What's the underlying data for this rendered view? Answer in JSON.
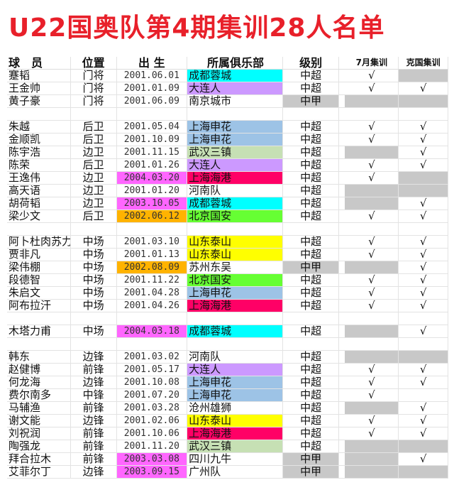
{
  "title": "U22国奥队第4期集训28人名单",
  "headers": {
    "name": "球　员",
    "position": "位置",
    "birth": "出 生",
    "club": "所属俱乐部",
    "level": "级别",
    "july": "7月集训",
    "croatia": "克国集训"
  },
  "colors": {
    "成都蓉城": "#00ffff",
    "大连人": "#cc99ff",
    "上海申花": "#9dc3e6",
    "武汉三镇": "#c6e0b4",
    "上海海港": "#ff0066",
    "北京国安": "#66ff33",
    "山东泰山": "#ffff00",
    "magenta": "#ff66ff",
    "orange": "#ffb300",
    "gray": "#c8c8c8"
  },
  "rows": [
    {
      "name": "蹇韬",
      "pos": "门将",
      "birth": "2001.06.01",
      "club": "成都蓉城",
      "level": "中超",
      "july": "√",
      "ke": "",
      "ke_gray": true
    },
    {
      "name": "王金帅",
      "pos": "门将",
      "birth": "2001.01.09",
      "club": "大连人",
      "level": "中超",
      "july": "√",
      "ke": "√"
    },
    {
      "name": "黄子豪",
      "pos": "门将",
      "birth": "2001.06.09",
      "club": "南京城市",
      "level": "中甲",
      "level_gray": true,
      "july": "",
      "july_gray": true,
      "ke": "",
      "ke_gray": true
    },
    {
      "gap": true
    },
    {
      "name": "朱越",
      "pos": "后卫",
      "birth": "2001.05.04",
      "club": "上海申花",
      "level": "中超",
      "july": "√",
      "ke": "√"
    },
    {
      "name": "金顺凯",
      "pos": "后卫",
      "birth": "2001.10.09",
      "club": "上海申花",
      "level": "中超",
      "july": "√",
      "ke": "√"
    },
    {
      "name": "陈宇浩",
      "pos": "边卫",
      "birth": "2001.11.15",
      "club": "武汉三镇",
      "level": "中超",
      "july": "",
      "july_gray": true,
      "ke": "√"
    },
    {
      "name": "陈荣",
      "pos": "后卫",
      "birth": "2001.01.26",
      "club": "大连人",
      "level": "中超",
      "july": "√",
      "ke": "√"
    },
    {
      "name": "王逸伟",
      "pos": "边卫",
      "birth": "2004.03.20",
      "birth_color": "magenta",
      "club": "上海海港",
      "level": "中超",
      "july": "√",
      "ke": "",
      "ke_gray": true
    },
    {
      "name": "高天语",
      "pos": "边卫",
      "birth": "2001.01.20",
      "club": "河南队",
      "level": "中超",
      "july": "",
      "july_gray": true,
      "ke": "",
      "ke_gray": true
    },
    {
      "name": "胡荷韬",
      "pos": "边卫",
      "birth": "2003.10.05",
      "birth_color": "magenta",
      "club": "成都蓉城",
      "level": "中超",
      "july": "",
      "july_gray": true,
      "ke": "√"
    },
    {
      "name": "梁少文",
      "pos": "后卫",
      "birth": "2002.06.12",
      "birth_color": "orange",
      "club": "北京国安",
      "level": "中超",
      "july": "√",
      "ke": "√"
    },
    {
      "gap": true
    },
    {
      "name": "阿卜杜肉苏力",
      "pos": "中场",
      "birth": "2001.03.10",
      "club": "山东泰山",
      "level": "中超",
      "july": "√",
      "ke": "√"
    },
    {
      "name": "贾非凡",
      "pos": "中场",
      "birth": "2001.01.13",
      "club": "山东泰山",
      "level": "中超",
      "july": "√",
      "ke": "√"
    },
    {
      "name": "梁伟棚",
      "pos": "中场",
      "birth": "2002.08.09",
      "birth_color": "orange",
      "club": "苏州东吴",
      "level": "中甲",
      "level_gray": true,
      "july": "",
      "july_gray": true,
      "ke": "√"
    },
    {
      "name": "段德智",
      "pos": "中场",
      "birth": "2001.11.22",
      "club": "北京国安",
      "level": "中超",
      "july": "√",
      "ke": "√"
    },
    {
      "name": "朱启文",
      "pos": "中场",
      "birth": "2001.04.28",
      "club": "上海申花",
      "level": "中超",
      "july": "√",
      "ke": "√"
    },
    {
      "name": "阿布拉汗",
      "pos": "中场",
      "birth": "2001.04.26",
      "club": "上海海港",
      "level": "中超",
      "july": "√",
      "ke": "√"
    },
    {
      "gap": true
    },
    {
      "name": "木塔力甫",
      "pos": "中场",
      "birth": "2004.03.18",
      "birth_color": "magenta",
      "club": "成都蓉城",
      "level": "中超",
      "july": "",
      "july_gray": true,
      "ke": "√"
    },
    {
      "gap": true
    },
    {
      "name": "韩东",
      "pos": "边锋",
      "birth": "2001.03.02",
      "club": "河南队",
      "level": "中超",
      "july": "",
      "july_gray": true,
      "ke": "",
      "ke_gray": true
    },
    {
      "name": "赵健博",
      "pos": "前锋",
      "birth": "2001.05.17",
      "club": "大连人",
      "level": "中超",
      "july": "√",
      "ke": "√"
    },
    {
      "name": "何龙海",
      "pos": "边锋",
      "birth": "2001.10.08",
      "club": "上海申花",
      "level": "中超",
      "july": "√",
      "ke": "√"
    },
    {
      "name": "费尔南多",
      "pos": "中锋",
      "birth": "2001.07.20",
      "club": "上海申花",
      "level": "中超",
      "july": "√",
      "ke": ""
    },
    {
      "name": "马辅渔",
      "pos": "前锋",
      "birth": "2001.03.28",
      "club": "沧州雄狮",
      "level": "中超",
      "july": "",
      "july_gray": true,
      "ke": "√"
    },
    {
      "name": "谢文能",
      "pos": "边锋",
      "birth": "2001.02.06",
      "club": "山东泰山",
      "level": "中超",
      "july": "√",
      "ke": "√"
    },
    {
      "name": "刘祝润",
      "pos": "前锋",
      "birth": "2001.10.06",
      "club": "上海海港",
      "level": "中超",
      "july": "√",
      "ke": "√"
    },
    {
      "name": "陶强龙",
      "pos": "前锋",
      "birth": "2001.11.20",
      "club": "武汉三镇",
      "level": "中超",
      "july": "",
      "july_gray": true,
      "ke": "",
      "ke_gray": true
    },
    {
      "name": "拜合拉木",
      "pos": "前锋",
      "birth": "2003.03.08",
      "birth_color": "magenta",
      "club": "四川九牛",
      "level": "中甲",
      "level_gray": true,
      "july": "",
      "july_gray": true,
      "ke": "√"
    },
    {
      "name": "艾菲尔丁",
      "pos": "边锋",
      "birth": "2003.09.15",
      "birth_color": "magenta",
      "club": "广州队",
      "level": "中甲",
      "level_gray": true,
      "july": "",
      "july_gray": true,
      "ke": "",
      "ke_gray": true
    }
  ]
}
